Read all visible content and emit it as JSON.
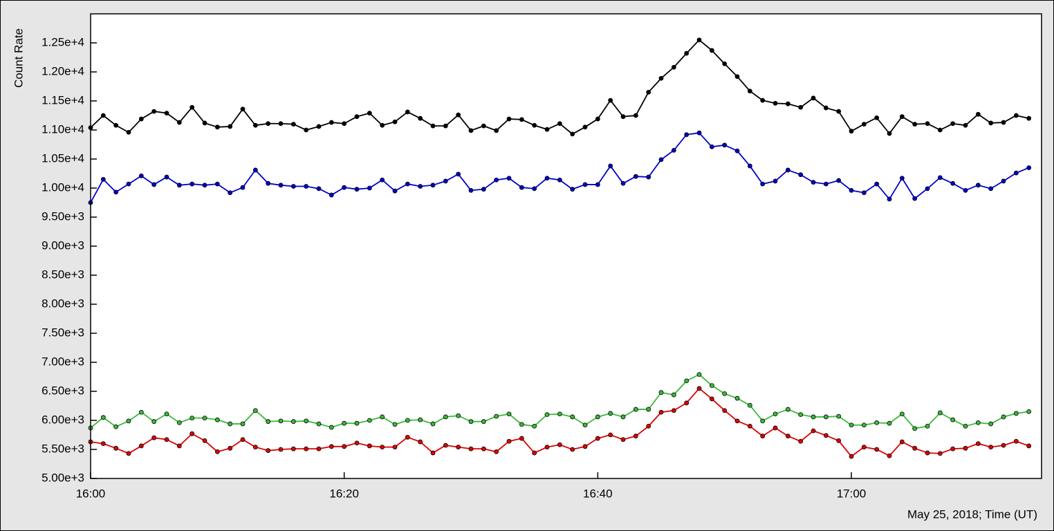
{
  "chart_data": {
    "type": "line",
    "ylabel": "Count Rate",
    "xlabel": "May 25, 2018; Time (UT)",
    "x": [
      "16:00",
      "16:01",
      "16:02",
      "16:03",
      "16:04",
      "16:05",
      "16:06",
      "16:07",
      "16:08",
      "16:09",
      "16:10",
      "16:11",
      "16:12",
      "16:13",
      "16:14",
      "16:15",
      "16:16",
      "16:17",
      "16:18",
      "16:19",
      "16:20",
      "16:21",
      "16:22",
      "16:23",
      "16:24",
      "16:25",
      "16:26",
      "16:27",
      "16:28",
      "16:29",
      "16:30",
      "16:31",
      "16:32",
      "16:33",
      "16:34",
      "16:35",
      "16:36",
      "16:37",
      "16:38",
      "16:39",
      "16:40",
      "16:41",
      "16:42",
      "16:43",
      "16:44",
      "16:45",
      "16:46",
      "16:47",
      "16:48",
      "16:49",
      "16:50",
      "16:51",
      "16:52",
      "16:53",
      "16:54",
      "16:55",
      "16:56",
      "16:57",
      "16:58",
      "16:59",
      "17:00",
      "17:01",
      "17:02",
      "17:03",
      "17:04",
      "17:05",
      "17:06",
      "17:07",
      "17:08",
      "17:09",
      "17:10",
      "17:11",
      "17:12",
      "17:13",
      "17:14"
    ],
    "xlim": [
      "16:00",
      "17:15"
    ],
    "xticks": [
      "16:00",
      "16:20",
      "16:40",
      "17:00"
    ],
    "ylim": [
      5000,
      13000
    ],
    "yticks": [
      {
        "value": 5000,
        "label": "5.00e+3"
      },
      {
        "value": 5500,
        "label": "5.50e+3"
      },
      {
        "value": 6000,
        "label": "6.00e+3"
      },
      {
        "value": 6500,
        "label": "6.50e+3"
      },
      {
        "value": 7000,
        "label": "7.00e+3"
      },
      {
        "value": 7500,
        "label": "7.50e+3"
      },
      {
        "value": 8000,
        "label": "8.00e+3"
      },
      {
        "value": 8500,
        "label": "8.50e+3"
      },
      {
        "value": 9000,
        "label": "9.00e+3"
      },
      {
        "value": 9500,
        "label": "9.50e+3"
      },
      {
        "value": 10000,
        "label": "1.00e+4"
      },
      {
        "value": 10500,
        "label": "1.05e+4"
      },
      {
        "value": 11000,
        "label": "1.10e+4"
      },
      {
        "value": 11500,
        "label": "1.15e+4"
      },
      {
        "value": 12000,
        "label": "1.20e+4"
      },
      {
        "value": 12500,
        "label": "1.25e+4"
      }
    ],
    "series": [
      {
        "color": "#000000",
        "values": [
          11040,
          11250,
          11080,
          10960,
          11190,
          11320,
          11290,
          11130,
          11390,
          11120,
          11050,
          11060,
          11360,
          11080,
          11110,
          11110,
          11100,
          11000,
          11060,
          11130,
          11110,
          11230,
          11290,
          11080,
          11140,
          11310,
          11200,
          11070,
          11070,
          11260,
          10990,
          11070,
          10990,
          11190,
          11180,
          11080,
          11010,
          11110,
          10930,
          11050,
          11190,
          11510,
          11230,
          11250,
          11650,
          11890,
          12080,
          12320,
          12550,
          12370,
          12140,
          11920,
          11670,
          11510,
          11460,
          11450,
          11390,
          11550,
          11380,
          11320,
          10980,
          11100,
          11210,
          10940,
          11230,
          11100,
          11110,
          11000,
          11110,
          11080,
          11270,
          11120,
          11130,
          11250,
          11200
        ]
      },
      {
        "color": "#0000cc",
        "values": [
          9750,
          10150,
          9930,
          10070,
          10210,
          10060,
          10190,
          10050,
          10070,
          10050,
          10070,
          9920,
          10010,
          10310,
          10080,
          10050,
          10030,
          10030,
          9990,
          9880,
          10010,
          9980,
          10000,
          10140,
          9950,
          10070,
          10030,
          10050,
          10120,
          10240,
          9960,
          9980,
          10140,
          10170,
          10010,
          9990,
          10170,
          10140,
          9980,
          10060,
          10060,
          10380,
          10080,
          10200,
          10190,
          10490,
          10650,
          10920,
          10950,
          10710,
          10740,
          10640,
          10380,
          10070,
          10120,
          10310,
          10230,
          10100,
          10070,
          10130,
          9960,
          9920,
          10070,
          9810,
          10170,
          9820,
          9990,
          10180,
          10080,
          9960,
          10050,
          9990,
          10120,
          10260,
          10350
        ]
      },
      {
        "color": "#3cb83c",
        "values": [
          5870,
          6050,
          5890,
          5990,
          6140,
          5980,
          6110,
          5960,
          6040,
          6040,
          6010,
          5940,
          5940,
          6170,
          5980,
          5990,
          5980,
          5990,
          5940,
          5880,
          5950,
          5950,
          6000,
          6060,
          5930,
          6000,
          6010,
          5940,
          6060,
          6080,
          5980,
          5980,
          6070,
          6110,
          5930,
          5900,
          6100,
          6110,
          6060,
          5920,
          6060,
          6120,
          6060,
          6190,
          6190,
          6480,
          6440,
          6680,
          6790,
          6600,
          6460,
          6380,
          6260,
          5990,
          6110,
          6190,
          6100,
          6060,
          6060,
          6070,
          5920,
          5920,
          5960,
          5950,
          6110,
          5860,
          5900,
          6130,
          6010,
          5900,
          5960,
          5940,
          6060,
          6120,
          6150
        ]
      },
      {
        "color": "#dd0000",
        "values": [
          5630,
          5600,
          5520,
          5430,
          5560,
          5700,
          5670,
          5560,
          5770,
          5650,
          5460,
          5520,
          5670,
          5540,
          5480,
          5500,
          5510,
          5510,
          5510,
          5550,
          5550,
          5610,
          5560,
          5540,
          5540,
          5710,
          5630,
          5440,
          5570,
          5540,
          5510,
          5510,
          5460,
          5640,
          5690,
          5440,
          5540,
          5580,
          5500,
          5550,
          5690,
          5750,
          5670,
          5730,
          5900,
          6140,
          6170,
          6300,
          6550,
          6370,
          6170,
          5990,
          5900,
          5730,
          5870,
          5730,
          5640,
          5820,
          5740,
          5650,
          5380,
          5540,
          5500,
          5390,
          5630,
          5520,
          5440,
          5430,
          5510,
          5520,
          5600,
          5540,
          5570,
          5640,
          5560
        ]
      }
    ]
  }
}
